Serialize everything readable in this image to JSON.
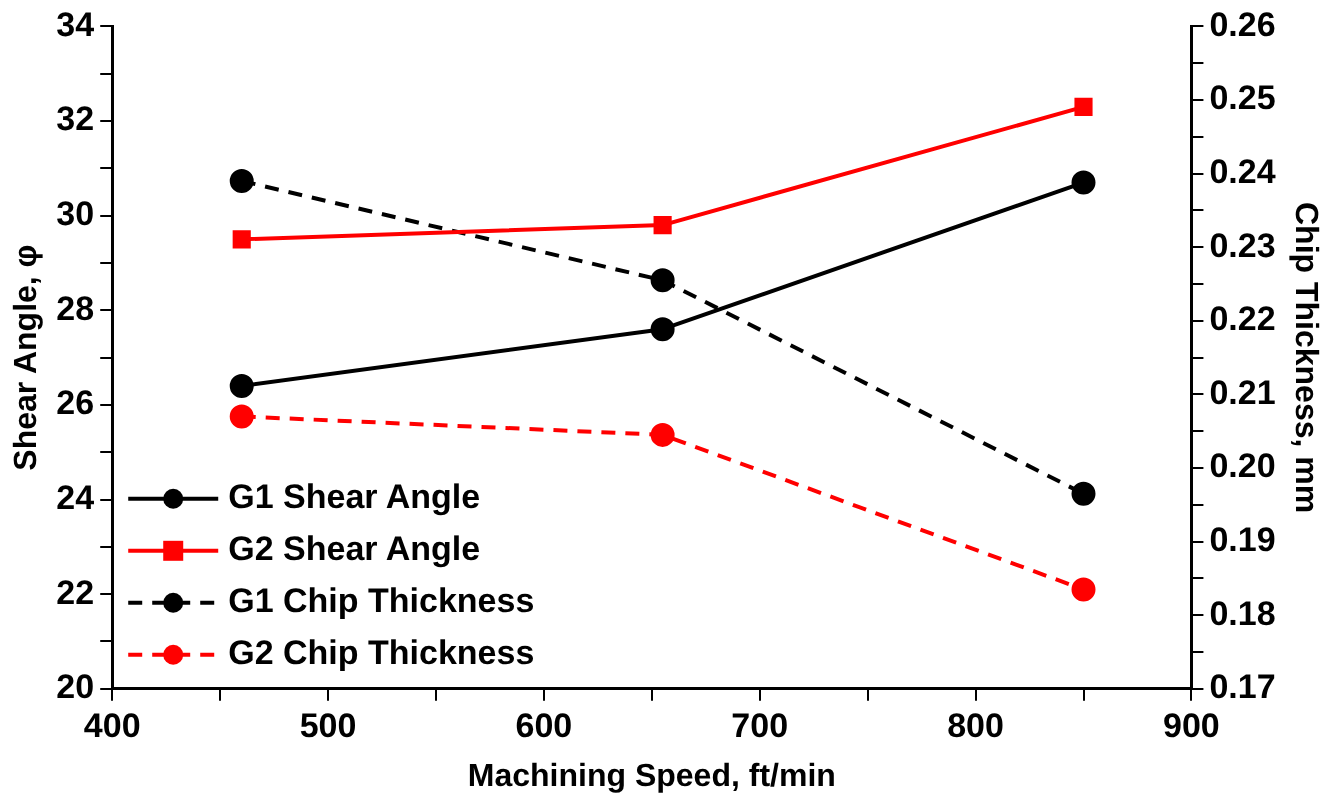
{
  "chart_data": {
    "type": "line",
    "xlabel": "Machining Speed, ft/min",
    "ylabel": "Shear Angle, φ",
    "y2label": "Chip Thickness, mm",
    "x": [
      460,
      655,
      850
    ],
    "xlim": [
      400,
      900
    ],
    "xticks": [
      400,
      {
        "value": 450,
        "label": null
      },
      500,
      {
        "value": 550,
        "label": null
      },
      600,
      {
        "value": 650,
        "label": null
      },
      700,
      {
        "value": 750,
        "label": null
      },
      800,
      {
        "value": 850,
        "label": null
      },
      900
    ],
    "ylim": [
      20,
      34
    ],
    "yticks": [
      20,
      {
        "value": 21,
        "label": null
      },
      22,
      {
        "value": 23,
        "label": null
      },
      24,
      {
        "value": 25,
        "label": null
      },
      26,
      {
        "value": 27,
        "label": null
      },
      28,
      {
        "value": 29,
        "label": null
      },
      30,
      {
        "value": 31,
        "label": null
      },
      32,
      {
        "value": 33,
        "label": null
      },
      34
    ],
    "y2lim": [
      0.17,
      0.26
    ],
    "y2ticks": [
      {
        "value": 0.17,
        "label": "0.17"
      },
      {
        "value": 0.175,
        "label": null
      },
      {
        "value": 0.18,
        "label": "0.18"
      },
      {
        "value": 0.185,
        "label": null
      },
      {
        "value": 0.19,
        "label": "0.19"
      },
      {
        "value": 0.195,
        "label": null
      },
      {
        "value": 0.2,
        "label": "0.20"
      },
      {
        "value": 0.205,
        "label": null
      },
      {
        "value": 0.21,
        "label": "0.21"
      },
      {
        "value": 0.215,
        "label": null
      },
      {
        "value": 0.22,
        "label": "0.22"
      },
      {
        "value": 0.225,
        "label": null
      },
      {
        "value": 0.23,
        "label": "0.23"
      },
      {
        "value": 0.235,
        "label": null
      },
      {
        "value": 0.24,
        "label": "0.24"
      },
      {
        "value": 0.245,
        "label": null
      },
      {
        "value": 0.25,
        "label": "0.25"
      },
      {
        "value": 0.255,
        "label": null
      },
      {
        "value": 0.26,
        "label": "0.26"
      }
    ],
    "grid": false,
    "legend": "bottom left",
    "series": [
      {
        "name": "G1 Shear Angle",
        "color": "#000000",
        "values": [
          26.4,
          27.6,
          30.7
        ],
        "marker": "circle",
        "line_style": "solid"
      },
      {
        "name": "G2 Shear Angle",
        "color": "#ff0000",
        "values": [
          29.5,
          29.8,
          32.3
        ],
        "marker": "square",
        "line_style": "solid"
      },
      {
        "name": "G1 Chip Thickness",
        "color": "#000000",
        "values": [
          0.239,
          0.2255,
          0.1965
        ],
        "marker": "circle",
        "line_style": "dashed",
        "axis": "y2"
      },
      {
        "name": "G2 Chip Thickness",
        "color": "#ff0000",
        "values": [
          0.207,
          0.2045,
          0.1835
        ],
        "marker": "circle",
        "line_style": "dashed",
        "axis": "y2"
      }
    ]
  }
}
